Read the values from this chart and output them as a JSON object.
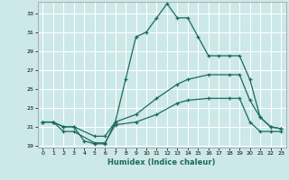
{
  "xlabel": "Humidex (Indice chaleur)",
  "bg_color": "#cce8e8",
  "grid_color": "#ffffff",
  "line_color": "#1a6b5a",
  "xlim": [
    -0.5,
    23.5
  ],
  "ylim": [
    18.8,
    34.2
  ],
  "yticks": [
    19,
    21,
    23,
    25,
    27,
    29,
    31,
    33
  ],
  "xticks": [
    0,
    1,
    2,
    3,
    4,
    5,
    6,
    7,
    8,
    9,
    10,
    11,
    12,
    13,
    14,
    15,
    16,
    17,
    18,
    19,
    20,
    21,
    22,
    23
  ],
  "line1_x": [
    0,
    1,
    2,
    3,
    4,
    5,
    6,
    7,
    8,
    9,
    10,
    11,
    12,
    13,
    14,
    15,
    16,
    17,
    18,
    19,
    20,
    21,
    22,
    23
  ],
  "line1_y": [
    21.5,
    21.5,
    21.0,
    21.0,
    19.5,
    19.2,
    19.2,
    21.5,
    26.0,
    30.5,
    31.0,
    32.5,
    34.0,
    32.5,
    32.5,
    30.5,
    28.5,
    28.5,
    28.5,
    28.5,
    26.0,
    22.0,
    21.0,
    20.8
  ],
  "line2_x": [
    0,
    1,
    2,
    3,
    5,
    6,
    7,
    9,
    11,
    13,
    14,
    16,
    18,
    19,
    20,
    21,
    22,
    23
  ],
  "line2_y": [
    21.5,
    21.5,
    21.0,
    21.0,
    20.0,
    20.0,
    21.5,
    22.3,
    24.0,
    25.5,
    26.0,
    26.5,
    26.5,
    26.5,
    23.8,
    22.0,
    21.0,
    20.8
  ],
  "line3_x": [
    0,
    1,
    2,
    3,
    5,
    6,
    7,
    9,
    11,
    13,
    14,
    16,
    18,
    19,
    20,
    21,
    22,
    23
  ],
  "line3_y": [
    21.5,
    21.5,
    20.5,
    20.5,
    19.3,
    19.3,
    21.2,
    21.5,
    22.3,
    23.5,
    23.8,
    24.0,
    24.0,
    24.0,
    21.5,
    20.5,
    20.5,
    20.5
  ]
}
